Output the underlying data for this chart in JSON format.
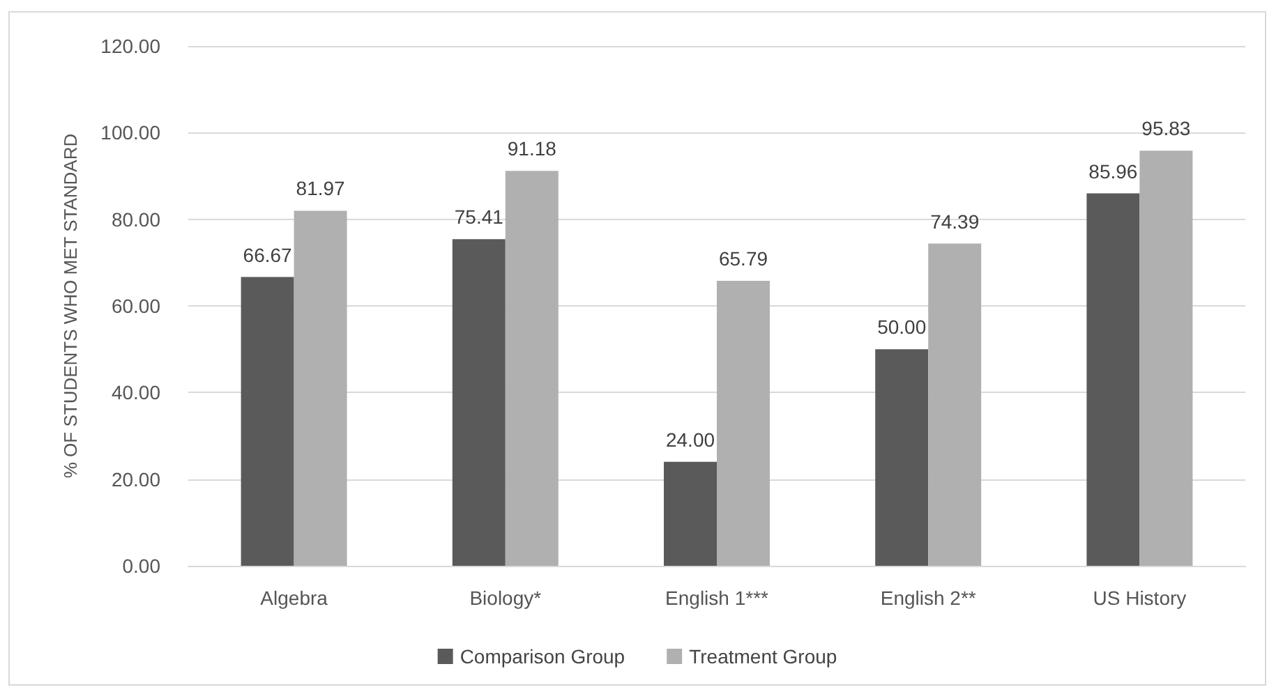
{
  "chart_data": {
    "type": "bar",
    "ylabel": "% OF STUDENTS WHO MET STANDARD",
    "categories": [
      "Algebra",
      "Biology*",
      "English 1***",
      "English 2**",
      "US History"
    ],
    "series": [
      {
        "name": "Comparison Group",
        "color": "#5a5a5a",
        "values": [
          66.67,
          75.41,
          24.0,
          50.0,
          85.96
        ],
        "value_labels": [
          "66.67",
          "75.41",
          "24.00",
          "50.00",
          "85.96"
        ]
      },
      {
        "name": "Treatment Group",
        "color": "#b0b0b0",
        "values": [
          81.97,
          91.18,
          65.79,
          74.39,
          95.83
        ],
        "value_labels": [
          "81.97",
          "91.18",
          "65.79",
          "74.39",
          "95.83"
        ]
      }
    ],
    "ylim": [
      0,
      120
    ],
    "yticks": [
      {
        "value": 0,
        "label": "0.00"
      },
      {
        "value": 20,
        "label": "20.00"
      },
      {
        "value": 40,
        "label": "40.00"
      },
      {
        "value": 60,
        "label": "60.00"
      },
      {
        "value": 80,
        "label": "80.00"
      },
      {
        "value": 100,
        "label": "100.00"
      },
      {
        "value": 120,
        "label": "120.00"
      }
    ],
    "grid": "y",
    "legend": "bottom"
  }
}
